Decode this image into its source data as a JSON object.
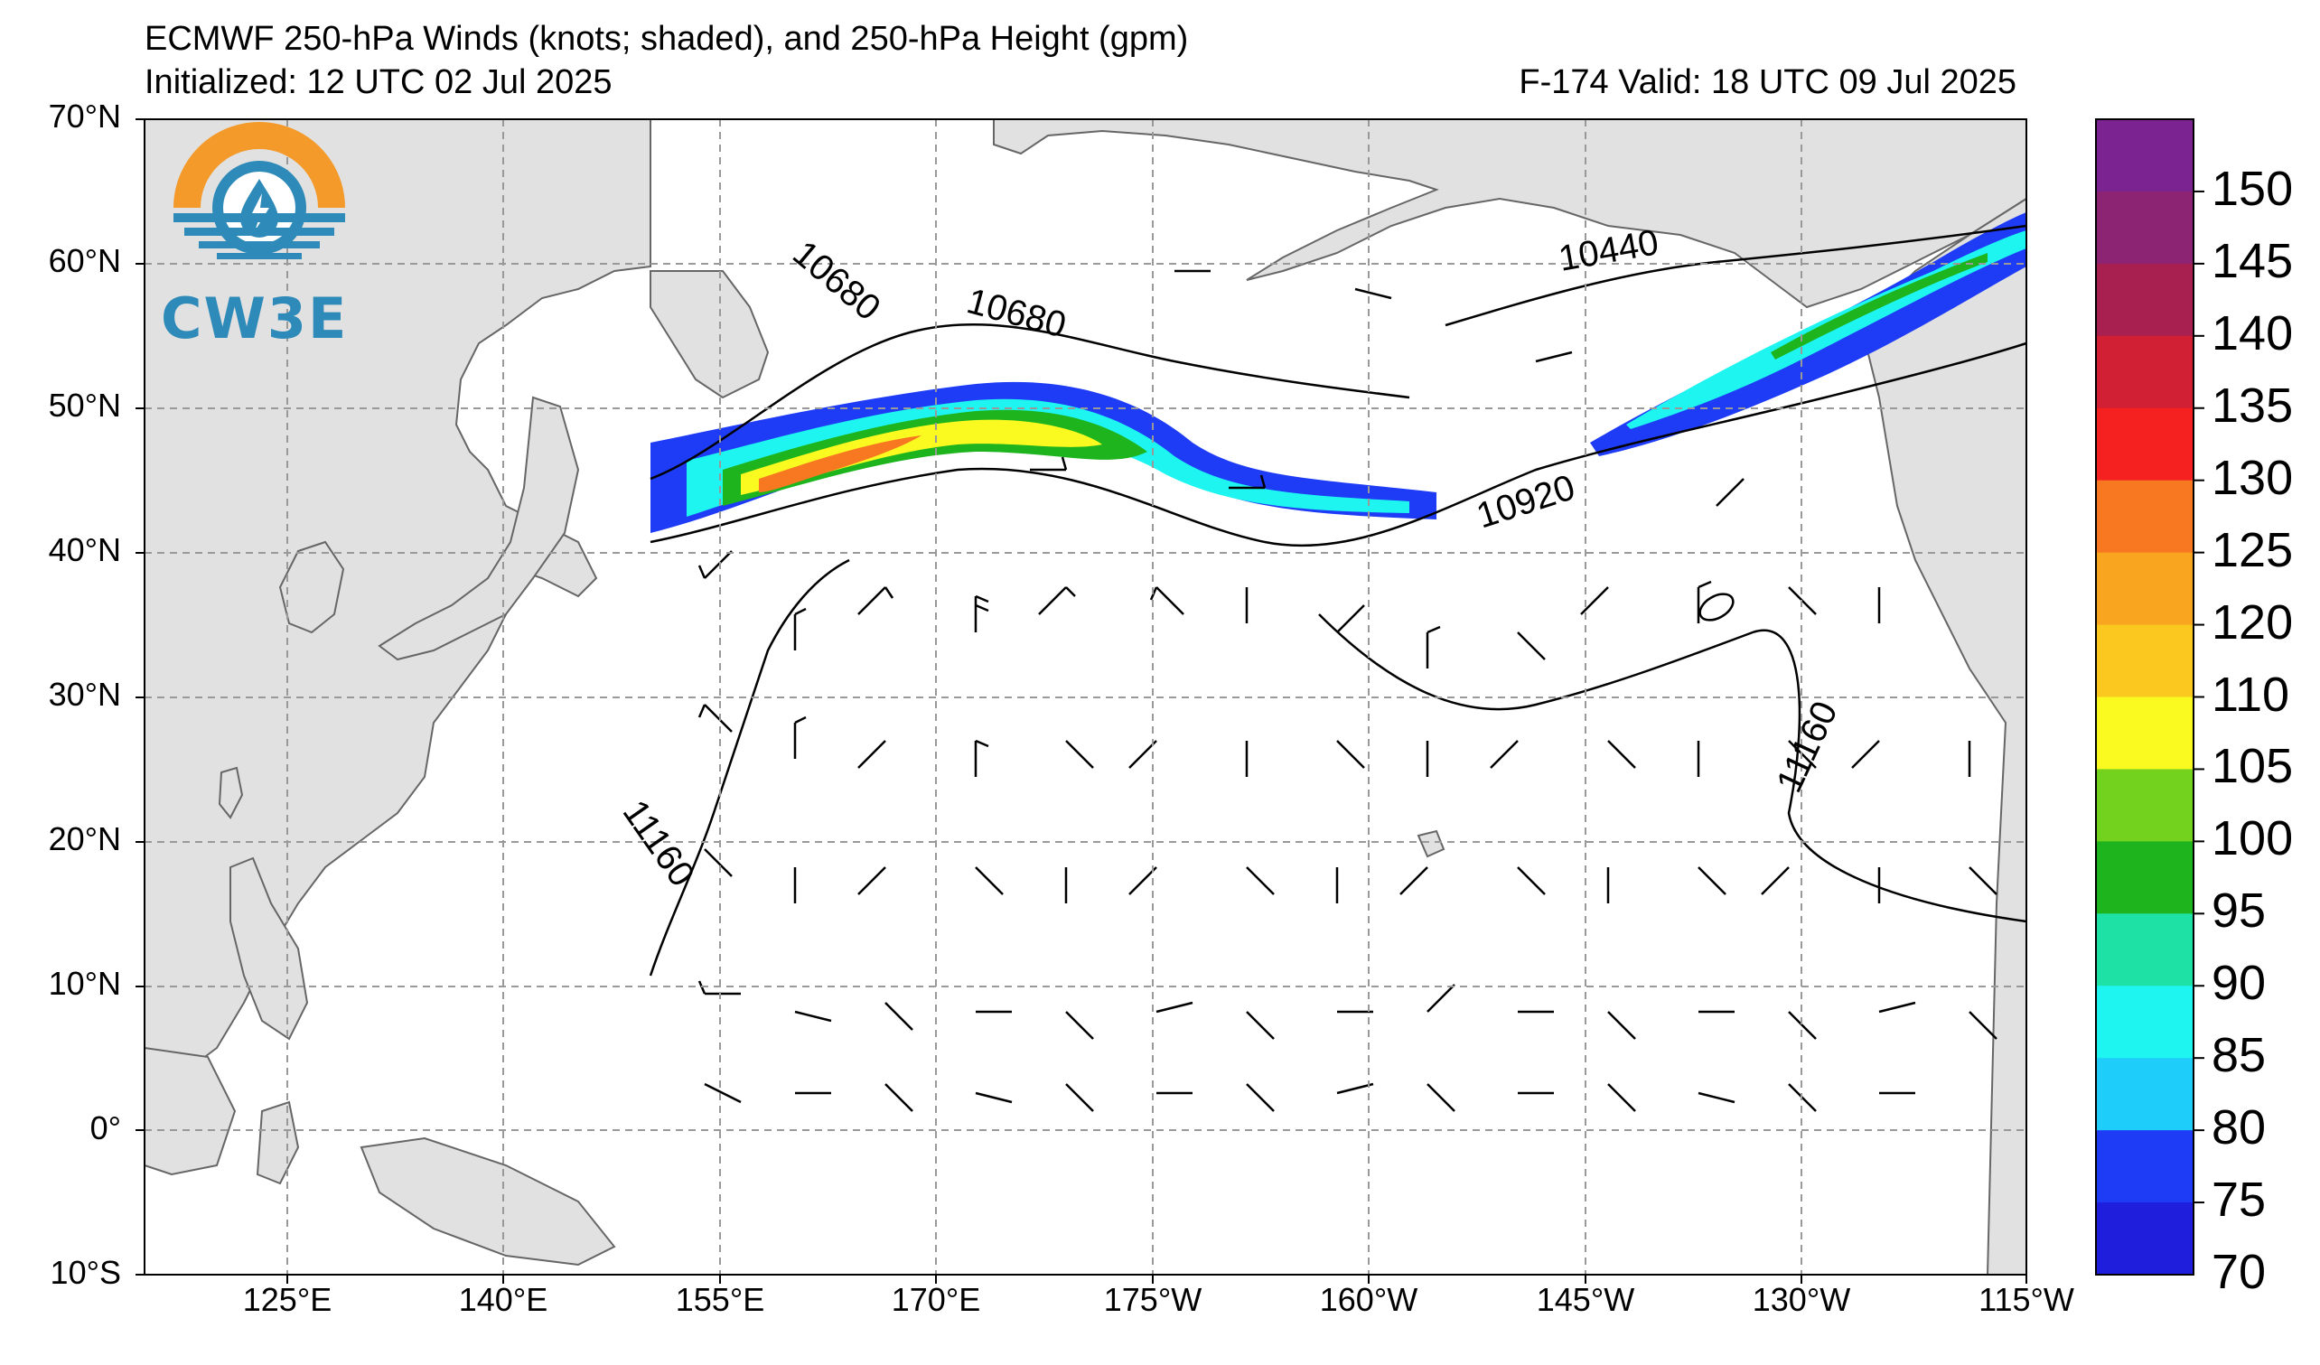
{
  "title": {
    "line1": "ECMWF 250-hPa Winds (knots; shaded), and 250-hPa Height (gpm)",
    "line2": "Initialized: 12 UTC 02 Jul 2025",
    "forecast": "F-174  Valid: 18 UTC 09 Jul 2025"
  },
  "logo": {
    "text": "CW3E",
    "icon": "cw3e-logo-icon"
  },
  "map": {
    "lat_labels": [
      "70°N",
      "60°N",
      "50°N",
      "40°N",
      "30°N",
      "20°N",
      "10°N",
      "0°",
      "10°S"
    ],
    "lon_labels": [
      "125°E",
      "140°E",
      "155°E",
      "170°E",
      "175°W",
      "160°W",
      "145°W",
      "130°W",
      "115°W"
    ],
    "contour_labels": [
      "10680",
      "10680",
      "10440",
      "10920",
      "11160",
      "11160"
    ]
  },
  "colorbar": {
    "ticks": [
      "150",
      "145",
      "140",
      "135",
      "130",
      "125",
      "120",
      "110",
      "105",
      "100",
      "95",
      "90",
      "85",
      "80",
      "75",
      "70"
    ],
    "colors": [
      "#7b2390",
      "#8c2373",
      "#a8204f",
      "#d11f33",
      "#f52020",
      "#f77820",
      "#f9a520",
      "#fbc820",
      "#fafa20",
      "#73d21e",
      "#1eb41e",
      "#1ee1a5",
      "#1ef5f0",
      "#1ecdfa",
      "#1e3cf5",
      "#1e1edc"
    ]
  }
}
